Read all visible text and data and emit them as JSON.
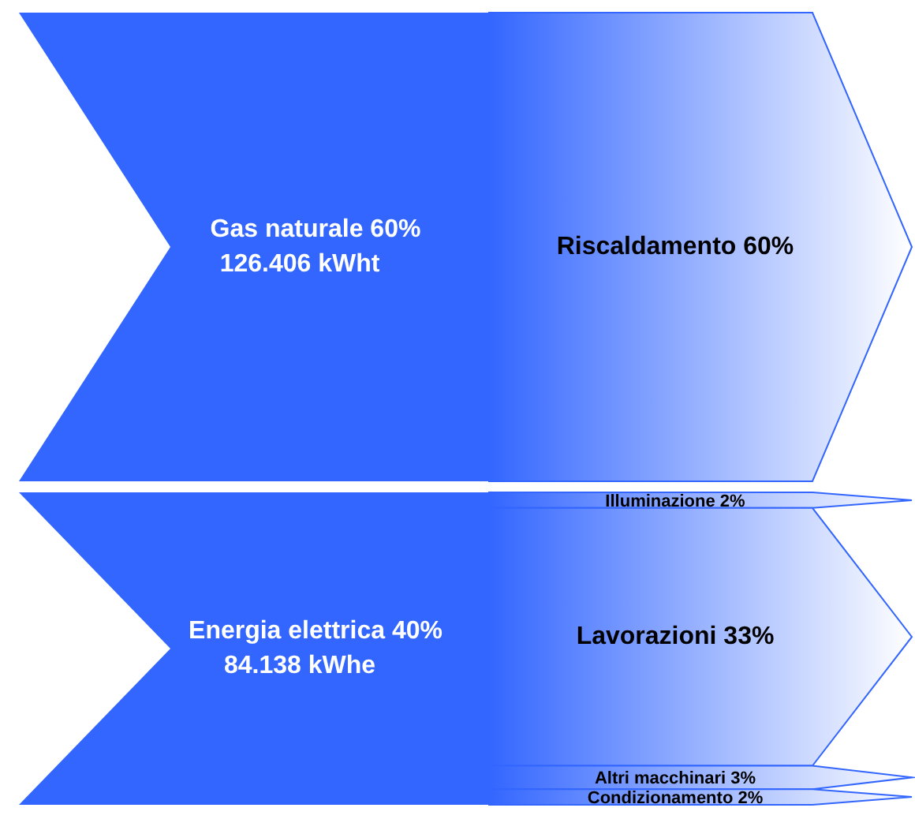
{
  "chart_data": {
    "type": "other",
    "categories": [
      "Riscaldamento",
      "Illuminazione",
      "Lavorazioni",
      "Altri macchinari",
      "Condizionamento"
    ],
    "series": [
      {
        "name": "Gas naturale 60%",
        "color": "#3366ff",
        "values": [
          60,
          null,
          null,
          null,
          null
        ],
        "value_labels": [
          "60%",
          null,
          null,
          null,
          null
        ]
      },
      {
        "name": "Energia elettrica 40%",
        "color": "#3366ff",
        "values": [
          null,
          2,
          33,
          3,
          2
        ],
        "value_labels": [
          null,
          "2%",
          "33%",
          "3%",
          "2%"
        ]
      }
    ],
    "annotations": [
      "126.406 kWht",
      "84.138 kWhe"
    ]
  }
}
